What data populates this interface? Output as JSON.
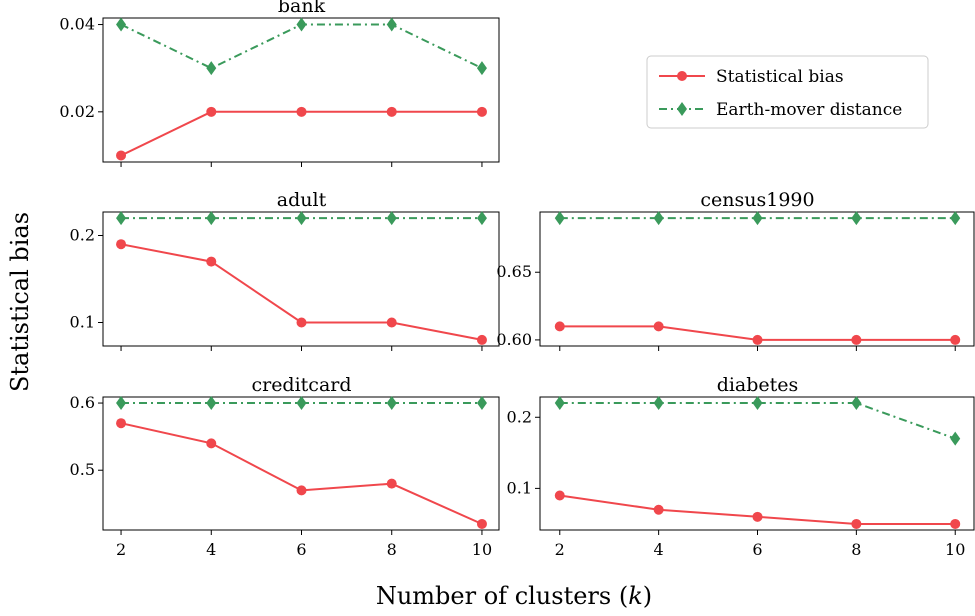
{
  "figure": {
    "ylabel": "Statistical bias",
    "xlabel": "Number of clusters (k)",
    "xlabel_prefix": "Number of clusters (",
    "xlabel_var": "k",
    "xlabel_suffix": ")"
  },
  "legend": {
    "placement": "top-right",
    "items": [
      {
        "label": "Statistical bias",
        "color": "#f0474c",
        "marker": "circle",
        "linestyle": "solid"
      },
      {
        "label": "Earth-mover distance",
        "color": "#3a9a5b",
        "marker": "diamond",
        "linestyle": "dashdot"
      }
    ]
  },
  "chart_data": [
    {
      "type": "line",
      "title": "bank",
      "x": [
        2,
        4,
        6,
        8,
        10
      ],
      "ylim": [
        0.01,
        0.04
      ],
      "yticks": [
        0.02,
        0.04
      ],
      "ytick_labels": [
        "0.02",
        "0.04"
      ],
      "xticks_labeled": false,
      "series": [
        {
          "name": "Statistical bias",
          "values": [
            0.01,
            0.02,
            0.02,
            0.02,
            0.02
          ]
        },
        {
          "name": "Earth-mover distance",
          "values": [
            0.04,
            0.03,
            0.04,
            0.04,
            0.03
          ]
        }
      ]
    },
    {
      "type": "line",
      "title": "adult",
      "x": [
        2,
        4,
        6,
        8,
        10
      ],
      "ylim": [
        0.08,
        0.22
      ],
      "yticks": [
        0.1,
        0.2
      ],
      "ytick_labels": [
        "0.1",
        "0.2"
      ],
      "xticks_labeled": false,
      "series": [
        {
          "name": "Statistical bias",
          "values": [
            0.19,
            0.17,
            0.1,
            0.1,
            0.08
          ]
        },
        {
          "name": "Earth-mover distance",
          "values": [
            0.22,
            0.22,
            0.22,
            0.22,
            0.22
          ]
        }
      ]
    },
    {
      "type": "line",
      "title": "census1990",
      "x": [
        2,
        4,
        6,
        8,
        10
      ],
      "ylim": [
        0.6,
        0.69
      ],
      "yticks": [
        0.6,
        0.65
      ],
      "ytick_labels": [
        "0.60",
        "0.65"
      ],
      "xticks_labeled": false,
      "series": [
        {
          "name": "Statistical bias",
          "values": [
            0.61,
            0.61,
            0.6,
            0.6,
            0.6
          ]
        },
        {
          "name": "Earth-mover distance",
          "values": [
            0.69,
            0.69,
            0.69,
            0.69,
            0.69
          ]
        }
      ]
    },
    {
      "type": "line",
      "title": "creditcard",
      "x": [
        2,
        4,
        6,
        8,
        10
      ],
      "ylim": [
        0.42,
        0.6
      ],
      "yticks": [
        0.5,
        0.6
      ],
      "ytick_labels": [
        "0.5",
        "0.6"
      ],
      "xticks_labeled": true,
      "xtick_labels": [
        "2",
        "4",
        "6",
        "8",
        "10"
      ],
      "series": [
        {
          "name": "Statistical bias",
          "values": [
            0.57,
            0.54,
            0.47,
            0.48,
            0.42
          ]
        },
        {
          "name": "Earth-mover distance",
          "values": [
            0.6,
            0.6,
            0.6,
            0.6,
            0.6
          ]
        }
      ]
    },
    {
      "type": "line",
      "title": "diabetes",
      "x": [
        2,
        4,
        6,
        8,
        10
      ],
      "ylim": [
        0.05,
        0.22
      ],
      "yticks": [
        0.1,
        0.2
      ],
      "ytick_labels": [
        "0.1",
        "0.2"
      ],
      "xticks_labeled": true,
      "xtick_labels": [
        "2",
        "4",
        "6",
        "8",
        "10"
      ],
      "series": [
        {
          "name": "Statistical bias",
          "values": [
            0.09,
            0.07,
            0.06,
            0.05,
            0.05
          ]
        },
        {
          "name": "Earth-mover distance",
          "values": [
            0.22,
            0.22,
            0.22,
            0.22,
            0.17
          ]
        }
      ]
    }
  ]
}
